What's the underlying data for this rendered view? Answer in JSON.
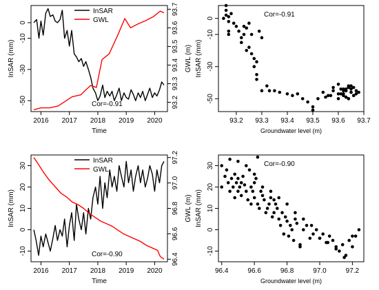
{
  "chart_data": [
    {
      "type": "line",
      "x_kind": "year",
      "series": [
        {
          "name": "InSAR",
          "axis": "left",
          "color": "#000000",
          "x": [
            2015.75,
            2015.85,
            2015.93,
            2016.0,
            2016.08,
            2016.17,
            2016.25,
            2016.33,
            2016.42,
            2016.5,
            2016.58,
            2016.67,
            2016.75,
            2016.83,
            2016.92,
            2017.0,
            2017.08,
            2017.17,
            2017.25,
            2017.33,
            2017.42,
            2017.5,
            2017.58,
            2017.67,
            2017.75,
            2017.83,
            2017.92,
            2018.0,
            2018.08,
            2018.17,
            2018.25,
            2018.33,
            2018.42,
            2018.5,
            2018.58,
            2018.67,
            2018.75,
            2018.83,
            2018.92,
            2019.0,
            2019.08,
            2019.17,
            2019.25,
            2019.33,
            2019.42,
            2019.5,
            2019.58,
            2019.67,
            2019.75,
            2019.83,
            2019.92,
            2020.0,
            2020.08,
            2020.17,
            2020.25,
            2020.33
          ],
          "y": [
            0,
            2,
            -10,
            1,
            -8,
            6,
            9,
            4,
            5,
            1,
            0,
            2,
            8,
            -10,
            -5,
            -15,
            -5,
            -20,
            -22,
            -25,
            -23,
            -28,
            -25,
            -30,
            -35,
            -42,
            -45,
            -50,
            -47,
            -40,
            -48,
            -44,
            -47,
            -44,
            -50,
            -46,
            -42,
            -50,
            -45,
            -48,
            -49,
            -43,
            -46,
            -50,
            -45,
            -48,
            -44,
            -50,
            -46,
            -42,
            -48,
            -45,
            -47,
            -43,
            -38,
            -40
          ]
        },
        {
          "name": "GWL",
          "axis": "right",
          "color": "#ff0000",
          "x": [
            2015.75,
            2016.0,
            2016.3,
            2016.6,
            2016.9,
            2017.1,
            2017.4,
            2017.6,
            2017.75,
            2017.95,
            2018.15,
            2018.4,
            2018.7,
            2018.95,
            2019.15,
            2019.4,
            2019.7,
            2019.95,
            2020.2,
            2020.33
          ],
          "y": [
            93.16,
            93.17,
            93.17,
            93.18,
            93.21,
            93.23,
            93.24,
            93.27,
            93.29,
            93.28,
            93.43,
            93.46,
            93.56,
            93.65,
            93.6,
            93.62,
            93.64,
            93.66,
            93.69,
            93.68
          ]
        }
      ],
      "xlim": [
        2015.65,
        2020.45
      ],
      "xticks": [
        2016,
        2017,
        2018,
        2019,
        2020
      ],
      "xtick_labels": [
        "2016",
        "2017",
        "2018",
        "2019",
        "2020"
      ],
      "ylim": [
        -57,
        11
      ],
      "yticks": [
        -50,
        -30,
        -10,
        0
      ],
      "ytick_labels": [
        "-50",
        "-30",
        "-10",
        "0"
      ],
      "ylim_right": [
        93.15,
        93.72
      ],
      "yticks_right": [
        93.2,
        93.3,
        93.4,
        93.5,
        93.6,
        93.7
      ],
      "ytick_labels_right": [
        "93.2",
        "93.3",
        "93.4",
        "93.5",
        "93.6",
        "93.7"
      ],
      "xlabel": "Time",
      "ylabel": "InSAR (mm)",
      "ylabel_right": "GWL (m)",
      "legend": [
        "InSAR",
        "GWL"
      ],
      "legend_position": "top-center",
      "annotation": "Cor=-0.91",
      "grid": false
    },
    {
      "type": "scatter",
      "x": [
        93.15,
        93.16,
        93.16,
        93.17,
        93.17,
        93.16,
        93.18,
        93.17,
        93.17,
        93.19,
        93.2,
        93.21,
        93.22,
        93.22,
        93.23,
        93.23,
        93.24,
        93.25,
        93.24,
        93.26,
        93.27,
        93.28,
        93.27,
        93.28,
        93.25,
        93.26,
        93.29,
        93.28,
        93.3,
        93.3,
        93.32,
        93.33,
        93.35,
        93.37,
        93.4,
        93.42,
        93.44,
        93.46,
        93.48,
        93.5,
        93.5,
        93.52,
        93.55,
        93.57,
        93.58,
        93.6,
        93.6,
        93.62,
        93.62,
        93.63,
        93.63,
        93.64,
        93.64,
        93.65,
        93.65,
        93.66,
        93.66,
        93.67,
        93.67,
        93.68,
        93.6,
        93.61,
        93.62,
        93.63,
        93.64,
        93.65,
        93.66,
        93.62,
        93.63,
        93.64,
        93.54,
        93.56,
        93.58,
        93.61,
        93.63,
        93.65
      ],
      "y": [
        0,
        2,
        5,
        -2,
        -8,
        8,
        3,
        -10,
        1,
        -3,
        -5,
        -8,
        -15,
        -12,
        -10,
        -5,
        -6,
        -18,
        -20,
        -22,
        -25,
        -27,
        -30,
        -35,
        -3,
        -10,
        -8,
        -38,
        -12,
        -45,
        -42,
        -45,
        -45,
        -46,
        -47,
        -48,
        -47,
        -50,
        -52,
        -55,
        -57,
        -50,
        -49,
        -48,
        -45,
        -47,
        -50,
        -44,
        -48,
        -45,
        -49,
        -42,
        -50,
        -46,
        -44,
        -48,
        -43,
        -47,
        -45,
        -46,
        -41,
        -44,
        -47,
        -49,
        -43,
        -46,
        -48,
        -45,
        -44,
        -50,
        -46,
        -48,
        -43,
        -47,
        -45,
        -42
      ],
      "color": "#000000",
      "xlim": [
        93.13,
        93.7
      ],
      "xticks": [
        93.2,
        93.3,
        93.4,
        93.5,
        93.6,
        93.7
      ],
      "xtick_labels": [
        "93.2",
        "93.3",
        "93.4",
        "93.5",
        "93.6",
        "93.7"
      ],
      "ylim": [
        -58,
        8
      ],
      "yticks": [
        -50,
        -30,
        -10,
        0
      ],
      "ytick_labels": [
        "-50",
        "-30",
        "-10",
        "0"
      ],
      "xlabel": "Groundwater level (m)",
      "ylabel": "InSAR (mm)",
      "annotation": "Cor=-0.91",
      "grid": false
    },
    {
      "type": "line",
      "x_kind": "year",
      "series": [
        {
          "name": "InSAR",
          "axis": "left",
          "color": "#000000",
          "x": [
            2015.75,
            2015.83,
            2015.92,
            2016.0,
            2016.08,
            2016.17,
            2016.25,
            2016.33,
            2016.42,
            2016.5,
            2016.58,
            2016.67,
            2016.75,
            2016.83,
            2016.92,
            2017.0,
            2017.08,
            2017.17,
            2017.25,
            2017.33,
            2017.42,
            2017.5,
            2017.58,
            2017.67,
            2017.75,
            2017.83,
            2017.92,
            2018.0,
            2018.08,
            2018.17,
            2018.25,
            2018.33,
            2018.42,
            2018.5,
            2018.58,
            2018.67,
            2018.75,
            2018.83,
            2018.92,
            2019.0,
            2019.08,
            2019.17,
            2019.25,
            2019.33,
            2019.42,
            2019.5,
            2019.58,
            2019.67,
            2019.75,
            2019.83,
            2019.92,
            2020.0,
            2020.08,
            2020.17,
            2020.25,
            2020.33
          ],
          "y": [
            0,
            -5,
            -12,
            -3,
            -8,
            -2,
            -6,
            -10,
            -4,
            2,
            -5,
            0,
            -3,
            5,
            -8,
            2,
            8,
            -5,
            12,
            5,
            0,
            8,
            -2,
            10,
            5,
            15,
            20,
            12,
            25,
            10,
            22,
            15,
            28,
            20,
            25,
            18,
            30,
            25,
            20,
            32,
            22,
            28,
            18,
            25,
            30,
            22,
            28,
            20,
            24,
            30,
            26,
            18,
            28,
            22,
            30,
            32
          ]
        },
        {
          "name": "GWL",
          "axis": "right",
          "color": "#ff0000",
          "x": [
            2015.75,
            2015.9,
            2016.1,
            2016.3,
            2016.5,
            2016.7,
            2016.9,
            2017.1,
            2017.3,
            2017.5,
            2017.7,
            2017.9,
            2018.1,
            2018.3,
            2018.5,
            2018.7,
            2018.9,
            2019.1,
            2019.3,
            2019.5,
            2019.7,
            2019.9,
            2020.1,
            2020.2,
            2020.33
          ],
          "y": [
            97.2,
            97.15,
            97.08,
            97.02,
            96.97,
            96.92,
            96.89,
            96.85,
            96.83,
            96.8,
            96.76,
            96.73,
            96.7,
            96.68,
            96.66,
            96.63,
            96.6,
            96.58,
            96.56,
            96.54,
            96.51,
            96.49,
            96.47,
            96.42,
            96.4
          ]
        }
      ],
      "xlim": [
        2015.65,
        2020.45
      ],
      "xticks": [
        2016,
        2017,
        2018,
        2019,
        2020
      ],
      "xtick_labels": [
        "2016",
        "2017",
        "2018",
        "2019",
        "2020"
      ],
      "ylim": [
        -15,
        35
      ],
      "yticks": [
        -10,
        0,
        10,
        20,
        30
      ],
      "ytick_labels": [
        "-10",
        "0",
        "10",
        "20",
        "30"
      ],
      "ylim_right": [
        96.38,
        97.22
      ],
      "yticks_right": [
        96.4,
        96.6,
        96.8,
        97.0,
        97.2
      ],
      "ytick_labels_right": [
        "96.4",
        "96.6",
        "96.8",
        "97.0",
        "97.2"
      ],
      "xlabel": "Time",
      "ylabel": "InSAR (mm)",
      "ylabel_right": "GWL (m)",
      "legend": [
        "InSAR",
        "GWL"
      ],
      "legend_position": "top-center",
      "annotation": "Cor=-0.90",
      "grid": false
    },
    {
      "type": "scatter",
      "x": [
        96.4,
        96.4,
        96.42,
        96.43,
        96.44,
        96.45,
        96.46,
        96.47,
        96.48,
        96.48,
        96.49,
        96.5,
        96.5,
        96.51,
        96.52,
        96.52,
        96.53,
        96.54,
        96.55,
        96.56,
        96.57,
        96.58,
        96.58,
        96.59,
        96.6,
        96.6,
        96.61,
        96.62,
        96.63,
        96.64,
        96.65,
        96.66,
        96.67,
        96.68,
        96.69,
        96.7,
        96.71,
        96.72,
        96.73,
        96.74,
        96.75,
        96.76,
        96.77,
        96.78,
        96.79,
        96.8,
        96.81,
        96.82,
        96.83,
        96.84,
        96.85,
        96.86,
        96.88,
        96.9,
        96.92,
        96.94,
        96.96,
        96.98,
        97.0,
        97.02,
        97.04,
        97.06,
        97.08,
        97.1,
        97.12,
        97.14,
        97.16,
        97.18,
        97.2,
        97.22,
        97.24,
        96.45,
        96.5,
        96.55,
        96.6,
        96.65,
        96.7,
        96.75,
        96.8,
        96.85,
        96.9,
        96.95,
        97.0,
        97.05,
        97.1,
        97.15,
        97.2,
        96.62,
        96.72,
        96.88
      ],
      "y": [
        30,
        20,
        25,
        28,
        22,
        18,
        24,
        20,
        26,
        15,
        22,
        24,
        18,
        20,
        22,
        16,
        25,
        21,
        18,
        14,
        28,
        20,
        12,
        18,
        22,
        15,
        24,
        12,
        10,
        18,
        16,
        14,
        8,
        10,
        12,
        15,
        6,
        8,
        12,
        10,
        5,
        2,
        8,
        -2,
        6,
        4,
        -3,
        2,
        0,
        -5,
        5,
        3,
        -8,
        0,
        2,
        -4,
        -2,
        0,
        -4,
        -2,
        -6,
        -3,
        -5,
        -8,
        -10,
        -7,
        -12,
        -5,
        -8,
        -3,
        0,
        33,
        32,
        30,
        26,
        20,
        18,
        15,
        12,
        8,
        5,
        2,
        -4,
        -6,
        -9,
        -13,
        -3,
        34,
        14,
        -7
      ],
      "color": "#000000",
      "xlim": [
        96.38,
        97.27
      ],
      "xticks": [
        96.4,
        96.6,
        96.8,
        97.0,
        97.2
      ],
      "xtick_labels": [
        "96.4",
        "96.6",
        "96.8",
        "97.0",
        "97.2"
      ],
      "ylim": [
        -15,
        35
      ],
      "yticks": [
        -10,
        0,
        10,
        20,
        30
      ],
      "ytick_labels": [
        "-10",
        "0",
        "10",
        "20",
        "30"
      ],
      "xlabel": "Groundwater level (m)",
      "ylabel": "InSAR (mm)",
      "annotation": "Cor=-0.90",
      "grid": false
    }
  ]
}
